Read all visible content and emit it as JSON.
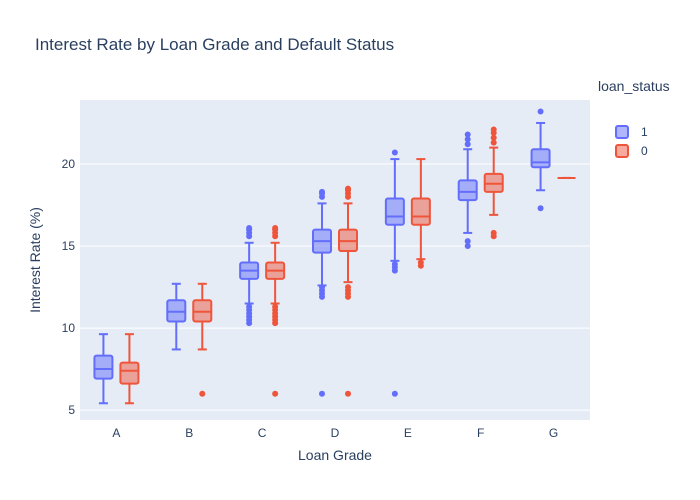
{
  "chart_data": {
    "type": "box",
    "title": "Interest Rate by Loan Grade and Default Status",
    "xlabel": "Loan Grade",
    "ylabel": "Interest Rate (%)",
    "categories": [
      "A",
      "B",
      "C",
      "D",
      "E",
      "F",
      "G"
    ],
    "y_ticks": [
      5,
      10,
      15,
      20
    ],
    "ylim": [
      4.4,
      23.9
    ],
    "grid": true,
    "legend": {
      "title": "loan_status",
      "placement": "top-right"
    },
    "series": [
      {
        "name": "1",
        "color": "#636efa",
        "boxes": [
          {
            "category": "A",
            "lower_fence": 5.42,
            "q1": 6.92,
            "median": 7.51,
            "q3": 8.32,
            "upper_fence": 9.63,
            "outliers": []
          },
          {
            "category": "B",
            "lower_fence": 8.7,
            "q1": 10.4,
            "median": 11.0,
            "q3": 11.7,
            "upper_fence": 12.7,
            "outliers": []
          },
          {
            "category": "C",
            "lower_fence": 11.5,
            "q1": 13.0,
            "median": 13.5,
            "q3": 14.0,
            "upper_fence": 15.2,
            "outliers": [
              10.3,
              10.5,
              10.7,
              10.9,
              11.1,
              11.3,
              15.6,
              15.8,
              16.0,
              16.1
            ]
          },
          {
            "category": "D",
            "lower_fence": 12.6,
            "q1": 14.6,
            "median": 15.3,
            "q3": 16.0,
            "upper_fence": 17.6,
            "outliers": [
              6.0,
              11.9,
              12.1,
              12.3,
              12.5,
              18.0,
              18.2,
              18.3
            ]
          },
          {
            "category": "E",
            "lower_fence": 14.1,
            "q1": 16.3,
            "median": 16.8,
            "q3": 17.9,
            "upper_fence": 20.3,
            "outliers": [
              6.0,
              13.5,
              13.7,
              13.9,
              20.7
            ]
          },
          {
            "category": "F",
            "lower_fence": 15.8,
            "q1": 17.8,
            "median": 18.3,
            "q3": 19.0,
            "upper_fence": 20.9,
            "outliers": [
              15.0,
              15.3,
              21.2,
              21.5,
              21.8
            ]
          },
          {
            "category": "G",
            "lower_fence": 18.4,
            "q1": 19.8,
            "median": 20.1,
            "q3": 20.9,
            "upper_fence": 22.5,
            "outliers": [
              17.3,
              23.2
            ]
          }
        ]
      },
      {
        "name": "0",
        "color": "#ef553b",
        "boxes": [
          {
            "category": "A",
            "lower_fence": 5.42,
            "q1": 6.62,
            "median": 7.4,
            "q3": 7.9,
            "upper_fence": 9.63,
            "outliers": []
          },
          {
            "category": "B",
            "lower_fence": 8.7,
            "q1": 10.4,
            "median": 11.0,
            "q3": 11.7,
            "upper_fence": 12.7,
            "outliers": [
              6.0
            ]
          },
          {
            "category": "C",
            "lower_fence": 11.5,
            "q1": 13.0,
            "median": 13.5,
            "q3": 14.0,
            "upper_fence": 15.2,
            "outliers": [
              6.0,
              10.3,
              10.5,
              10.7,
              10.9,
              11.1,
              11.3,
              15.6,
              15.8,
              16.0,
              16.1
            ]
          },
          {
            "category": "D",
            "lower_fence": 12.8,
            "q1": 14.7,
            "median": 15.3,
            "q3": 16.0,
            "upper_fence": 17.6,
            "outliers": [
              6.0,
              11.9,
              12.1,
              12.3,
              12.5,
              18.0,
              18.2,
              18.4,
              18.5
            ]
          },
          {
            "category": "E",
            "lower_fence": 14.2,
            "q1": 16.3,
            "median": 16.8,
            "q3": 17.9,
            "upper_fence": 20.3,
            "outliers": [
              13.8,
              14.0
            ]
          },
          {
            "category": "F",
            "lower_fence": 16.9,
            "q1": 18.3,
            "median": 18.8,
            "q3": 19.4,
            "upper_fence": 21.0,
            "outliers": [
              15.6,
              15.8,
              21.3,
              21.6,
              21.9,
              22.1
            ]
          },
          {
            "category": "G",
            "lower_fence": 19.15,
            "q1": 19.15,
            "median": 19.15,
            "q3": 19.15,
            "upper_fence": 19.15,
            "outliers": []
          }
        ]
      }
    ]
  }
}
